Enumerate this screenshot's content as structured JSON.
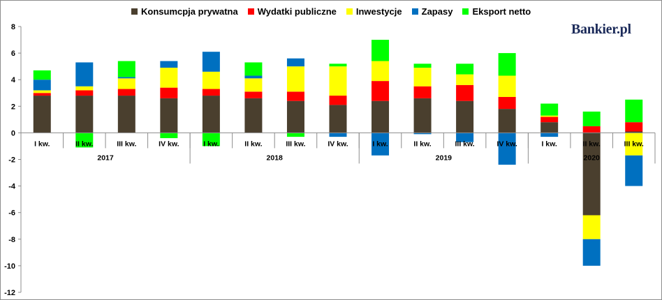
{
  "brand": {
    "text": "Bankier.pl"
  },
  "chart_data": {
    "type": "bar",
    "stacked": true,
    "ylim": [
      -12,
      8
    ],
    "yticks": [
      8,
      6,
      4,
      2,
      0,
      -2,
      -4,
      -6,
      -8,
      -10,
      -12
    ],
    "grid": false,
    "legend_position": "top",
    "categories": [
      "I kw.",
      "II kw.",
      "III kw.",
      "IV kw.",
      "I kw.",
      "II kw.",
      "III kw.",
      "IV kw.",
      "I kw.",
      "II kw.",
      "III kw.",
      "IV kw.",
      "I kw.",
      "II kw.",
      "III kw."
    ],
    "years": [
      {
        "label": "2017",
        "span": 4
      },
      {
        "label": "2018",
        "span": 4
      },
      {
        "label": "2019",
        "span": 4
      },
      {
        "label": "2020",
        "span": 3
      }
    ],
    "series": [
      {
        "name": "Konsumcpja prywatna",
        "color": "#4a3f2e",
        "values": [
          2.8,
          2.8,
          2.8,
          2.6,
          2.8,
          2.6,
          2.4,
          2.1,
          2.4,
          2.6,
          2.4,
          1.8,
          0.8,
          -6.2,
          0.1
        ]
      },
      {
        "name": "Wydatki publiczne",
        "color": "#ff0000",
        "values": [
          0.2,
          0.4,
          0.5,
          0.8,
          0.5,
          0.5,
          0.7,
          0.7,
          1.5,
          0.9,
          1.2,
          0.9,
          0.4,
          0.5,
          0.7
        ]
      },
      {
        "name": "Inwestycje",
        "color": "#ffff00",
        "values": [
          0.2,
          0.3,
          0.8,
          1.5,
          1.3,
          1.0,
          1.9,
          2.2,
          1.5,
          1.4,
          0.8,
          1.6,
          0.1,
          -1.8,
          -1.7
        ]
      },
      {
        "name": "Zapasy",
        "color": "#0070c0",
        "values": [
          0.8,
          1.8,
          0.1,
          0.5,
          1.5,
          0.2,
          0.6,
          -0.3,
          -1.7,
          -0.1,
          -0.7,
          -2.4,
          -0.3,
          -2.0,
          -2.3
        ]
      },
      {
        "name": "Eksport netto",
        "color": "#00ff00",
        "values": [
          0.7,
          -1.1,
          1.2,
          -0.4,
          -1.0,
          1.0,
          -0.3,
          0.2,
          1.6,
          0.3,
          0.8,
          1.7,
          0.9,
          1.1,
          1.7
        ]
      }
    ]
  }
}
